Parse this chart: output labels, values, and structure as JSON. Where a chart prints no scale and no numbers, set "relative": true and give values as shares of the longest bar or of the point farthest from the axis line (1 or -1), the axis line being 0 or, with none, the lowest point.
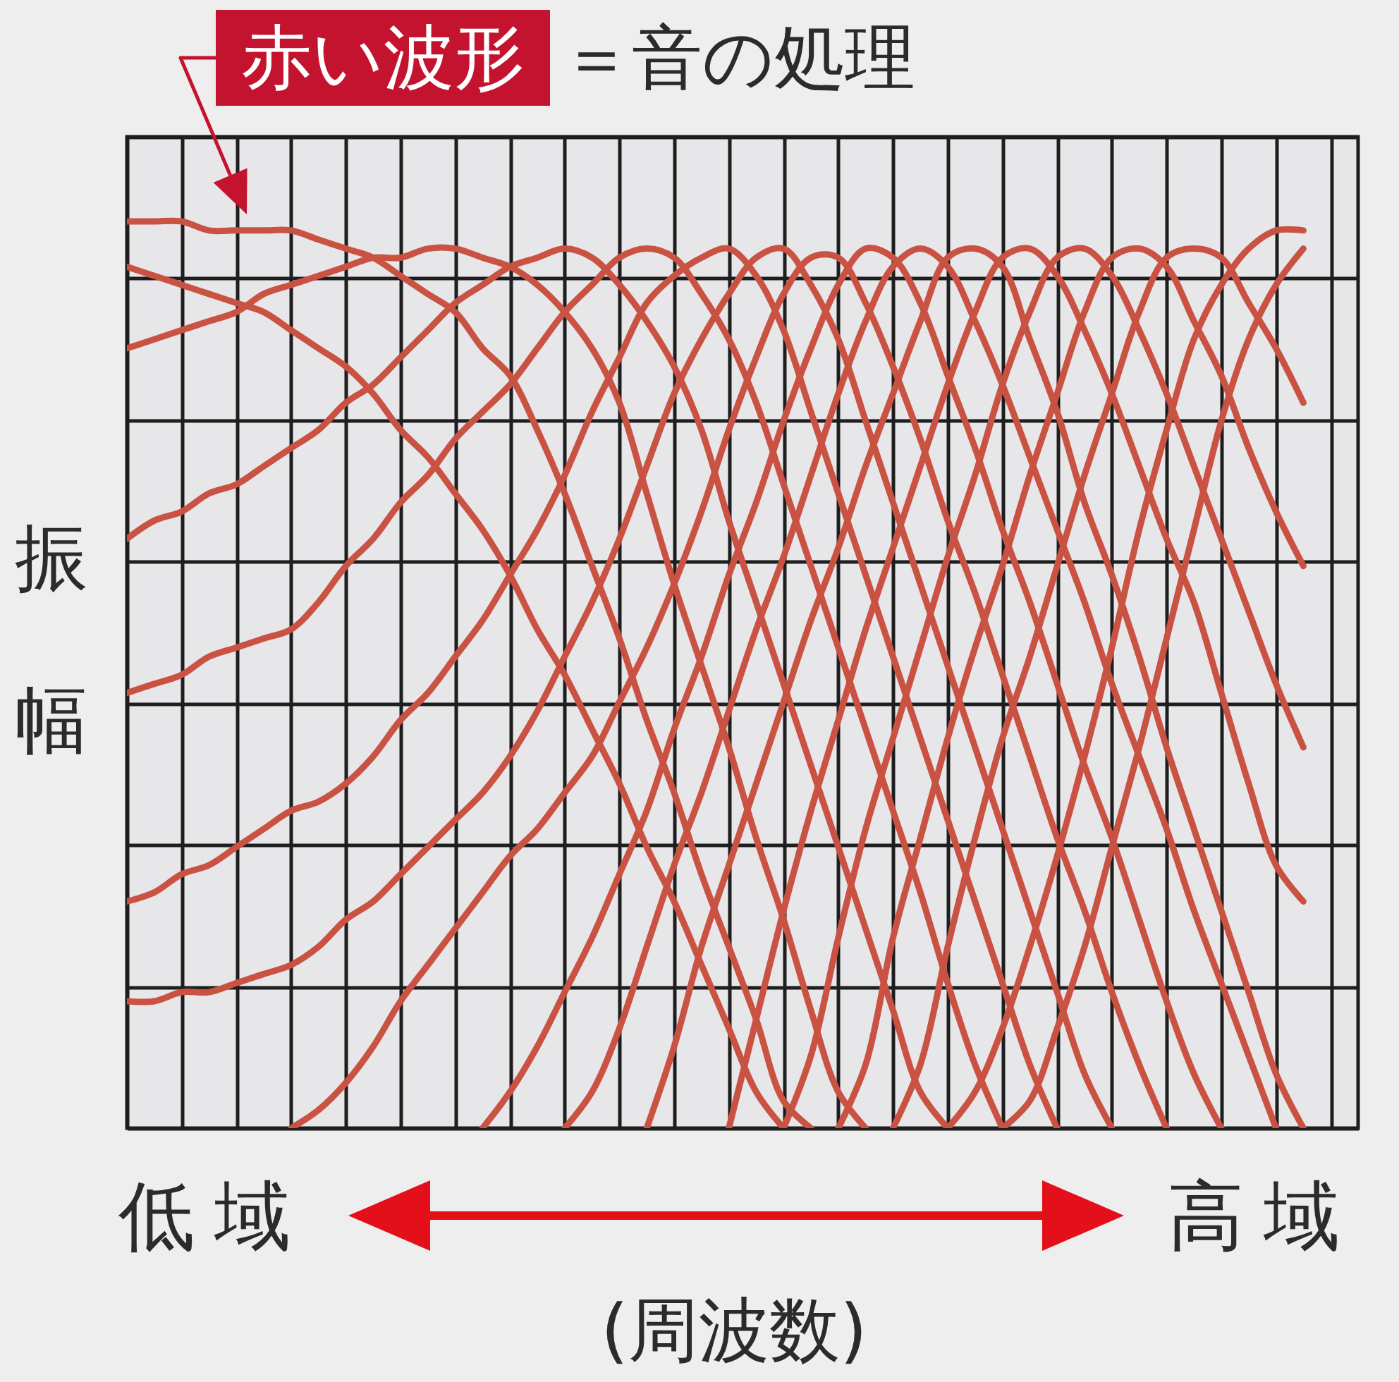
{
  "chart_data": {
    "type": "line",
    "relative": true,
    "grid": true,
    "xlabel": "(周波数)",
    "ylabel": "振幅",
    "annotations": [
      "赤い波形",
      "＝音の処理",
      "低域",
      "高域"
    ],
    "categories": [
      null,
      null,
      null,
      null,
      null,
      null,
      null,
      null,
      null,
      null,
      null,
      null,
      null,
      null,
      null,
      null,
      null,
      null,
      null,
      null,
      null,
      null,
      null,
      null,
      null,
      null,
      null,
      null,
      null,
      null,
      null,
      null,
      null,
      null,
      null,
      null,
      null,
      null,
      null,
      null,
      null,
      null,
      null,
      null,
      null,
      null
    ],
    "series": [
      {
        "color": "#c95243",
        "values": [
          1,
          1,
          1,
          0.99,
          0.99,
          0.99,
          0.99,
          0.98,
          0.97,
          0.96,
          0.94,
          0.92,
          0.9,
          0.86,
          0.83,
          0.77,
          0.7,
          0.62,
          0.54,
          0.45,
          0.37,
          0.28,
          0.2,
          0.12,
          0.03,
          0,
          null,
          null,
          null,
          null,
          null,
          null,
          null,
          null,
          null,
          null,
          null,
          null,
          null,
          null,
          null,
          null,
          null,
          null,
          null,
          null
        ]
      },
      {
        "color": "#c95243",
        "values": [
          0.95,
          0.94,
          0.93,
          0.92,
          0.91,
          0.9,
          0.88,
          0.86,
          0.84,
          0.81,
          0.77,
          0.74,
          0.7,
          0.66,
          0.61,
          0.55,
          0.5,
          0.44,
          0.38,
          0.31,
          0.25,
          0.18,
          0.11,
          0.04,
          0,
          null,
          null,
          null,
          null,
          null,
          null,
          null,
          null,
          null,
          null,
          null,
          null,
          null,
          null,
          null,
          null,
          null,
          null,
          null,
          null,
          null
        ]
      },
      {
        "color": "#c95243",
        "values": [
          0.86,
          0.87,
          0.88,
          0.89,
          0.9,
          0.92,
          0.93,
          0.94,
          0.95,
          0.96,
          0.96,
          0.97,
          0.97,
          0.96,
          0.95,
          0.93,
          0.9,
          0.86,
          0.8,
          0.7,
          0.6,
          0.51,
          0.42,
          0.32,
          0.23,
          0.13,
          0.04,
          0,
          null,
          null,
          null,
          null,
          null,
          null,
          null,
          null,
          null,
          null,
          null,
          null,
          null,
          null,
          null,
          null,
          null,
          null
        ]
      },
      {
        "color": "#c95243",
        "values": [
          0.65,
          0.67,
          0.68,
          0.7,
          0.71,
          0.73,
          0.75,
          0.77,
          0.8,
          0.82,
          0.85,
          0.88,
          0.91,
          0.93,
          0.95,
          0.96,
          0.97,
          0.96,
          0.93,
          0.89,
          0.84,
          0.77,
          0.67,
          0.58,
          0.49,
          0.4,
          0.31,
          0.22,
          0.13,
          0.04,
          0,
          null,
          null,
          null,
          null,
          null,
          null,
          null,
          null,
          null,
          null,
          null,
          null,
          null,
          null,
          null
        ]
      },
      {
        "color": "#c95243",
        "values": [
          0.48,
          0.49,
          0.5,
          0.52,
          0.53,
          0.54,
          0.55,
          0.58,
          0.62,
          0.65,
          0.69,
          0.72,
          0.76,
          0.79,
          0.82,
          0.86,
          0.9,
          0.93,
          0.96,
          0.97,
          0.96,
          0.92,
          0.87,
          0.8,
          0.71,
          0.62,
          0.53,
          0.44,
          0.35,
          0.26,
          0.16,
          0.07,
          0,
          null,
          null,
          null,
          null,
          null,
          null,
          null,
          null,
          null,
          null,
          null,
          null,
          null
        ]
      },
      {
        "color": "#c95243",
        "values": [
          0.25,
          0.26,
          0.28,
          0.29,
          0.31,
          0.33,
          0.35,
          0.36,
          0.38,
          0.41,
          0.45,
          0.48,
          0.52,
          0.56,
          0.61,
          0.66,
          0.72,
          0.79,
          0.85,
          0.91,
          0.94,
          0.96,
          0.97,
          0.94,
          0.88,
          0.79,
          0.7,
          0.61,
          0.52,
          0.43,
          0.34,
          0.25,
          0.16,
          0.07,
          0,
          null,
          null,
          null,
          null,
          null,
          null,
          null,
          null,
          null,
          null,
          null
        ]
      },
      {
        "color": "#c95243",
        "values": [
          0.14,
          0.14,
          0.15,
          0.15,
          0.16,
          0.17,
          0.18,
          0.2,
          0.23,
          0.25,
          0.28,
          0.31,
          0.34,
          0.37,
          0.41,
          0.46,
          0.52,
          0.58,
          0.65,
          0.73,
          0.81,
          0.87,
          0.92,
          0.96,
          0.97,
          0.93,
          0.87,
          0.78,
          0.69,
          0.6,
          0.51,
          0.42,
          0.33,
          0.24,
          0.15,
          0.06,
          0,
          null,
          null,
          null,
          null,
          null,
          null,
          null,
          null,
          null
        ]
      },
      {
        "color": "#c95243",
        "values": [
          null,
          null,
          null,
          null,
          null,
          null,
          0,
          0.02,
          0.05,
          0.09,
          0.14,
          0.18,
          0.22,
          0.26,
          0.3,
          0.33,
          0.37,
          0.41,
          0.47,
          0.53,
          0.6,
          0.68,
          0.77,
          0.85,
          0.92,
          0.96,
          0.96,
          0.91,
          0.84,
          0.76,
          0.67,
          0.59,
          0.5,
          0.41,
          0.32,
          0.24,
          0.15,
          0.07,
          0,
          null,
          null,
          null,
          null,
          null,
          null,
          null
        ]
      },
      {
        "color": "#c95243",
        "values": [
          null,
          null,
          null,
          null,
          null,
          null,
          null,
          null,
          null,
          null,
          null,
          null,
          null,
          0,
          0.04,
          0.09,
          0.15,
          0.21,
          0.28,
          0.35,
          0.44,
          0.52,
          0.61,
          0.69,
          0.78,
          0.86,
          0.93,
          0.97,
          0.96,
          0.91,
          0.83,
          0.75,
          0.66,
          0.58,
          0.49,
          0.4,
          0.32,
          0.23,
          0.14,
          0.06,
          0,
          null,
          null,
          null,
          null,
          null
        ]
      },
      {
        "color": "#c95243",
        "values": [
          null,
          null,
          null,
          null,
          null,
          null,
          null,
          null,
          null,
          null,
          null,
          null,
          null,
          null,
          null,
          null,
          0,
          0.04,
          0.11,
          0.2,
          0.29,
          0.37,
          0.46,
          0.55,
          0.63,
          0.72,
          0.81,
          0.89,
          0.95,
          0.97,
          0.95,
          0.89,
          0.82,
          0.74,
          0.66,
          0.58,
          0.49,
          0.41,
          0.33,
          0.24,
          0.16,
          0.08,
          0,
          null,
          null,
          null
        ]
      },
      {
        "color": "#c95243",
        "values": [
          null,
          null,
          null,
          null,
          null,
          null,
          null,
          null,
          null,
          null,
          null,
          null,
          null,
          null,
          null,
          null,
          null,
          null,
          null,
          0,
          0.09,
          0.2,
          0.29,
          0.38,
          0.47,
          0.56,
          0.64,
          0.73,
          0.81,
          0.89,
          0.96,
          0.97,
          0.95,
          0.87,
          0.79,
          0.69,
          0.61,
          0.52,
          0.42,
          0.33,
          0.24,
          0.15,
          0.06,
          0,
          null,
          null
        ]
      },
      {
        "color": "#c95243",
        "values": [
          null,
          null,
          null,
          null,
          null,
          null,
          null,
          null,
          null,
          null,
          null,
          null,
          null,
          null,
          null,
          null,
          null,
          null,
          null,
          null,
          null,
          null,
          0,
          0.12,
          0.24,
          0.35,
          0.45,
          0.55,
          0.64,
          0.73,
          0.82,
          0.9,
          0.96,
          0.97,
          0.94,
          0.88,
          0.81,
          0.73,
          0.65,
          0.58,
          0.48,
          0.38,
          0.29,
          0.25,
          null,
          null
        ]
      },
      {
        "color": "#c95243",
        "values": [
          null,
          null,
          null,
          null,
          null,
          null,
          null,
          null,
          null,
          null,
          null,
          null,
          null,
          null,
          null,
          null,
          null,
          null,
          null,
          null,
          null,
          null,
          null,
          null,
          0,
          0.08,
          0.21,
          0.33,
          0.43,
          0.53,
          0.63,
          0.72,
          0.82,
          0.9,
          0.96,
          0.97,
          0.94,
          0.88,
          0.81,
          0.73,
          0.65,
          0.57,
          0.49,
          0.42,
          null,
          null
        ]
      },
      {
        "color": "#c95243",
        "values": [
          null,
          null,
          null,
          null,
          null,
          null,
          null,
          null,
          null,
          null,
          null,
          null,
          null,
          null,
          null,
          null,
          null,
          null,
          null,
          null,
          null,
          null,
          null,
          null,
          null,
          null,
          0,
          0.07,
          0.21,
          0.32,
          0.43,
          0.53,
          0.62,
          0.72,
          0.81,
          0.9,
          0.96,
          0.97,
          0.95,
          0.89,
          0.83,
          0.75,
          0.68,
          0.62,
          null,
          null
        ]
      },
      {
        "color": "#c95243",
        "values": [
          null,
          null,
          null,
          null,
          null,
          null,
          null,
          null,
          null,
          null,
          null,
          null,
          null,
          null,
          null,
          null,
          null,
          null,
          null,
          null,
          null,
          null,
          null,
          null,
          null,
          null,
          null,
          null,
          0,
          0.07,
          0.2,
          0.32,
          0.43,
          0.52,
          0.62,
          0.72,
          0.81,
          0.9,
          0.96,
          0.97,
          0.96,
          0.91,
          0.86,
          0.8,
          null,
          null
        ]
      },
      {
        "color": "#c95243",
        "values": [
          null,
          null,
          null,
          null,
          null,
          null,
          null,
          null,
          null,
          null,
          null,
          null,
          null,
          null,
          null,
          null,
          null,
          null,
          null,
          null,
          null,
          null,
          null,
          null,
          null,
          null,
          null,
          null,
          null,
          null,
          0,
          0.04,
          0.11,
          0.2,
          0.3,
          0.41,
          0.53,
          0.66,
          0.77,
          0.87,
          0.93,
          0.97,
          0.99,
          0.99,
          null,
          null
        ]
      },
      {
        "color": "#c95243",
        "values": [
          null,
          null,
          null,
          null,
          null,
          null,
          null,
          null,
          null,
          null,
          null,
          null,
          null,
          null,
          null,
          null,
          null,
          null,
          null,
          null,
          null,
          null,
          null,
          null,
          null,
          null,
          null,
          null,
          null,
          null,
          null,
          null,
          0,
          0.03,
          0.11,
          0.2,
          0.31,
          0.42,
          0.54,
          0.66,
          0.78,
          0.87,
          0.93,
          0.97,
          null,
          null
        ]
      }
    ]
  }
}
